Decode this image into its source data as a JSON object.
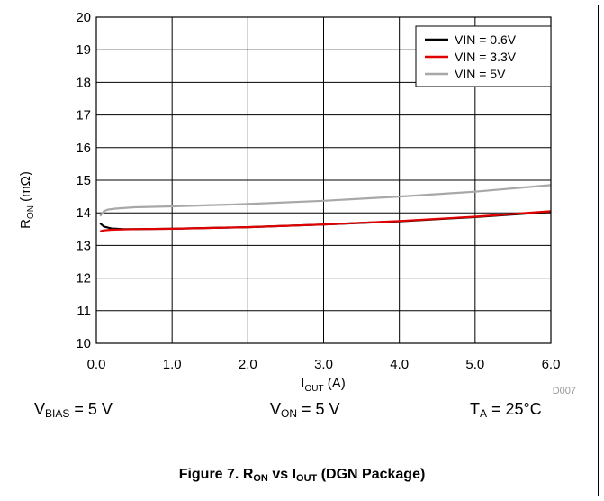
{
  "chart_data": {
    "type": "line",
    "xlabel": {
      "main": "I",
      "sub": "OUT",
      "suffix": " (A)"
    },
    "ylabel": {
      "main": "R",
      "sub": "ON",
      "suffix": " (mΩ)"
    },
    "xlim": [
      0,
      6
    ],
    "ylim": [
      10,
      20
    ],
    "x_ticks": [
      0,
      1,
      2,
      3,
      4,
      5,
      6
    ],
    "x_tick_labels": [
      "0.0",
      "1.0",
      "2.0",
      "3.0",
      "4.0",
      "5.0",
      "6.0"
    ],
    "y_ticks": [
      10,
      11,
      12,
      13,
      14,
      15,
      16,
      17,
      18,
      19,
      20
    ],
    "y_tick_labels": [
      "10",
      "11",
      "12",
      "13",
      "14",
      "15",
      "16",
      "17",
      "18",
      "19",
      "20"
    ],
    "grid": true,
    "legend_position": "top-right",
    "series": [
      {
        "name": "VIN = 0.6V",
        "color": "#000000",
        "x": [
          0.05,
          0.1,
          0.2,
          0.35,
          0.5,
          1,
          2,
          3,
          4,
          5,
          6
        ],
        "y": [
          13.68,
          13.58,
          13.52,
          13.5,
          13.5,
          13.51,
          13.56,
          13.64,
          13.74,
          13.87,
          14.03
        ]
      },
      {
        "name": "VIN = 3.3V",
        "color": "#e00000",
        "x": [
          0.05,
          0.1,
          0.2,
          0.35,
          0.5,
          1,
          2,
          3,
          4,
          5,
          6
        ],
        "y": [
          13.43,
          13.46,
          13.48,
          13.49,
          13.5,
          13.51,
          13.56,
          13.64,
          13.75,
          13.88,
          14.05
        ]
      },
      {
        "name": "VIN = 5V",
        "color": "#a8a8a8",
        "x": [
          0.05,
          0.1,
          0.15,
          0.25,
          0.5,
          1,
          2,
          3,
          4,
          5,
          6
        ],
        "y": [
          13.9,
          14.05,
          14.1,
          14.13,
          14.17,
          14.2,
          14.27,
          14.37,
          14.5,
          14.65,
          14.85
        ]
      }
    ],
    "watermark": "D007",
    "conditions": [
      {
        "main": "V",
        "sub": "BIAS",
        "rest": " = 5 V"
      },
      {
        "main": "V",
        "sub": "ON",
        "rest": " = 5 V"
      },
      {
        "main": "T",
        "sub": "A",
        "rest": " = 25°C"
      }
    ],
    "caption": {
      "prefix": "Figure 7. R",
      "sub1": "ON",
      "mid": " vs I",
      "sub2": "OUT",
      "suffix": " (DGN Package)"
    }
  }
}
